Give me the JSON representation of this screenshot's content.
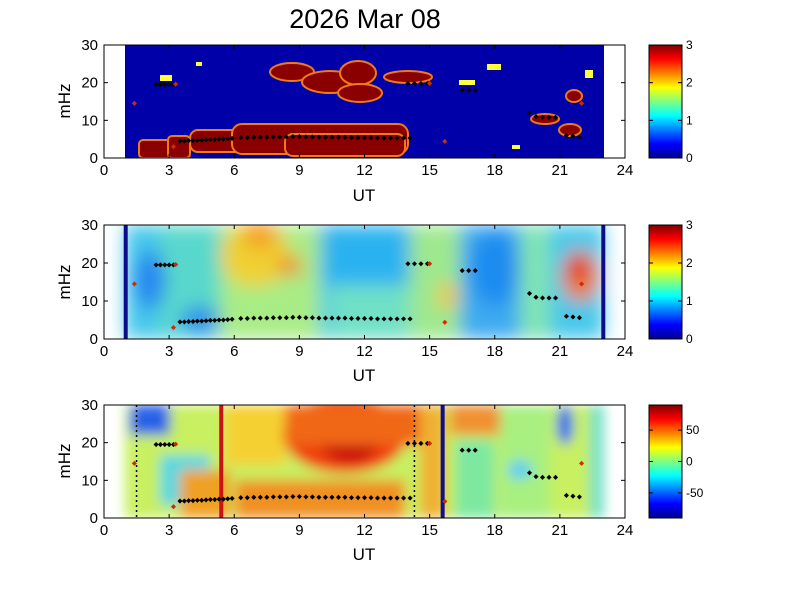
{
  "figure": {
    "title": "2026 Mar 08"
  },
  "chart_data": [
    {
      "type": "heatmap",
      "xlabel": "UT",
      "ylabel": "mHz",
      "xlim": [
        0,
        24
      ],
      "ylim": [
        0,
        30
      ],
      "xticks": [
        0,
        3,
        6,
        9,
        12,
        15,
        18,
        21,
        24
      ],
      "yticks": [
        0,
        10,
        20,
        30
      ],
      "data_extent_ut": [
        1,
        23
      ],
      "colorbar": {
        "range": [
          0,
          3
        ],
        "ticks": [
          0,
          1,
          2,
          3
        ]
      },
      "note_fields": [
        "near-zero background with high-value regions"
      ],
      "high_regions": [
        {
          "ut": [
            1.6,
            3.0
          ],
          "mhz": [
            0,
            4
          ],
          "value": 3
        },
        {
          "ut": [
            3.0,
            4.0
          ],
          "mhz": [
            0,
            5
          ],
          "value": 3
        },
        {
          "ut": [
            4.0,
            9.0
          ],
          "mhz": [
            1,
            7
          ],
          "value": 3
        },
        {
          "ut": [
            6.0,
            13.5
          ],
          "mhz": [
            2,
            8
          ],
          "value": 3
        },
        {
          "ut": [
            9.0,
            14.0
          ],
          "mhz": [
            2,
            7
          ],
          "value": 3
        },
        {
          "ut": [
            8.4,
            11.6
          ],
          "mhz": [
            15,
            21
          ],
          "value": 3
        },
        {
          "ut": [
            9.6,
            11.2
          ],
          "mhz": [
            16,
            24
          ],
          "value": 3
        },
        {
          "ut": [
            12.4,
            13.7
          ],
          "mhz": [
            18,
            23
          ],
          "value": 3
        },
        {
          "ut": [
            13.3,
            15.0
          ],
          "mhz": [
            20,
            23
          ],
          "value": 3
        },
        {
          "ut": [
            20.0,
            21.3
          ],
          "mhz": [
            9,
            12
          ],
          "value": 3
        },
        {
          "ut": [
            21.3,
            22.2
          ],
          "mhz": [
            6,
            8
          ],
          "value": 3
        },
        {
          "ut": [
            21.4,
            22.1
          ],
          "mhz": [
            15,
            18
          ],
          "value": 3
        },
        {
          "ut": [
            21.0,
            22.0
          ],
          "mhz": [
            3,
            6
          ],
          "value": 3
        }
      ],
      "series": [
        {
          "color": "#000000",
          "points": [
            [
              2.4,
              19.5
            ],
            [
              2.6,
              19.5
            ],
            [
              2.8,
              19.5
            ],
            [
              3.0,
              19.5
            ],
            [
              3.2,
              19.5
            ],
            [
              3.5,
              4.5
            ],
            [
              3.7,
              4.5
            ],
            [
              3.9,
              4.6
            ],
            [
              4.1,
              4.6
            ],
            [
              4.3,
              4.7
            ],
            [
              4.5,
              4.7
            ],
            [
              4.7,
              4.8
            ],
            [
              4.9,
              4.9
            ],
            [
              5.1,
              4.9
            ],
            [
              5.3,
              5.0
            ],
            [
              5.5,
              5.0
            ],
            [
              5.7,
              5.1
            ],
            [
              5.9,
              5.2
            ],
            [
              6.3,
              5.4
            ],
            [
              6.6,
              5.4
            ],
            [
              6.9,
              5.5
            ],
            [
              7.2,
              5.5
            ],
            [
              7.5,
              5.5
            ],
            [
              7.8,
              5.6
            ],
            [
              8.1,
              5.6
            ],
            [
              8.4,
              5.6
            ],
            [
              8.7,
              5.7
            ],
            [
              9.0,
              5.7
            ],
            [
              9.3,
              5.6
            ],
            [
              9.6,
              5.6
            ],
            [
              9.9,
              5.5
            ],
            [
              10.2,
              5.5
            ],
            [
              10.5,
              5.5
            ],
            [
              10.8,
              5.5
            ],
            [
              11.1,
              5.5
            ],
            [
              11.4,
              5.4
            ],
            [
              11.7,
              5.4
            ],
            [
              12.0,
              5.4
            ],
            [
              12.3,
              5.4
            ],
            [
              12.6,
              5.3
            ],
            [
              12.9,
              5.3
            ],
            [
              13.2,
              5.3
            ],
            [
              13.5,
              5.3
            ],
            [
              13.8,
              5.3
            ],
            [
              14.1,
              5.3
            ],
            [
              14.0,
              19.8
            ],
            [
              14.3,
              19.8
            ],
            [
              14.6,
              19.8
            ],
            [
              14.9,
              19.8
            ],
            [
              16.5,
              18.0
            ],
            [
              16.8,
              18.0
            ],
            [
              17.1,
              18.0
            ],
            [
              19.6,
              12.0
            ],
            [
              19.9,
              11.0
            ],
            [
              20.2,
              10.8
            ],
            [
              20.5,
              10.8
            ],
            [
              20.8,
              10.8
            ],
            [
              21.3,
              6.0
            ],
            [
              21.6,
              5.8
            ],
            [
              21.9,
              5.6
            ]
          ]
        },
        {
          "color": "#d42a00",
          "points": [
            [
              1.4,
              14.5
            ],
            [
              3.3,
              19.6
            ],
            [
              3.2,
              3.0
            ],
            [
              15.7,
              4.4
            ],
            [
              15.0,
              19.8
            ],
            [
              22.0,
              14.5
            ]
          ]
        }
      ]
    },
    {
      "type": "heatmap",
      "xlabel": "UT",
      "ylabel": "mHz",
      "xlim": [
        0,
        24
      ],
      "ylim": [
        0,
        30
      ],
      "xticks": [
        0,
        3,
        6,
        9,
        12,
        15,
        18,
        21,
        24
      ],
      "yticks": [
        0,
        10,
        20,
        30
      ],
      "data_extent_ut": [
        1,
        23
      ],
      "colorbar": {
        "range": [
          0,
          3
        ],
        "ticks": [
          0,
          1,
          2,
          3
        ]
      },
      "vertical_lines": [
        {
          "ut": 1.0,
          "color": "#0c0c8a"
        },
        {
          "ut": 23.0,
          "color": "#0c0c8a"
        }
      ],
      "series": [
        {
          "color": "#000000",
          "points": [
            [
              2.4,
              19.5
            ],
            [
              2.6,
              19.5
            ],
            [
              2.8,
              19.5
            ],
            [
              3.0,
              19.5
            ],
            [
              3.2,
              19.5
            ],
            [
              3.5,
              4.5
            ],
            [
              3.7,
              4.5
            ],
            [
              3.9,
              4.6
            ],
            [
              4.1,
              4.6
            ],
            [
              4.3,
              4.7
            ],
            [
              4.5,
              4.7
            ],
            [
              4.7,
              4.8
            ],
            [
              4.9,
              4.9
            ],
            [
              5.1,
              4.9
            ],
            [
              5.3,
              5.0
            ],
            [
              5.5,
              5.0
            ],
            [
              5.7,
              5.1
            ],
            [
              5.9,
              5.2
            ],
            [
              6.3,
              5.4
            ],
            [
              6.6,
              5.4
            ],
            [
              6.9,
              5.5
            ],
            [
              7.2,
              5.5
            ],
            [
              7.5,
              5.5
            ],
            [
              7.8,
              5.6
            ],
            [
              8.1,
              5.6
            ],
            [
              8.4,
              5.6
            ],
            [
              8.7,
              5.7
            ],
            [
              9.0,
              5.7
            ],
            [
              9.3,
              5.6
            ],
            [
              9.6,
              5.6
            ],
            [
              9.9,
              5.5
            ],
            [
              10.2,
              5.5
            ],
            [
              10.5,
              5.5
            ],
            [
              10.8,
              5.5
            ],
            [
              11.1,
              5.5
            ],
            [
              11.4,
              5.4
            ],
            [
              11.7,
              5.4
            ],
            [
              12.0,
              5.4
            ],
            [
              12.3,
              5.4
            ],
            [
              12.6,
              5.3
            ],
            [
              12.9,
              5.3
            ],
            [
              13.2,
              5.3
            ],
            [
              13.5,
              5.3
            ],
            [
              13.8,
              5.3
            ],
            [
              14.1,
              5.3
            ],
            [
              14.0,
              19.8
            ],
            [
              14.3,
              19.8
            ],
            [
              14.6,
              19.8
            ],
            [
              14.9,
              19.8
            ],
            [
              16.5,
              18.0
            ],
            [
              16.8,
              18.0
            ],
            [
              17.1,
              18.0
            ],
            [
              19.6,
              12.0
            ],
            [
              19.9,
              11.0
            ],
            [
              20.2,
              10.8
            ],
            [
              20.5,
              10.8
            ],
            [
              20.8,
              10.8
            ],
            [
              21.3,
              6.0
            ],
            [
              21.6,
              5.8
            ],
            [
              21.9,
              5.6
            ]
          ]
        },
        {
          "color": "#d42a00",
          "points": [
            [
              1.4,
              14.5
            ],
            [
              3.3,
              19.6
            ],
            [
              3.2,
              3.0
            ],
            [
              15.7,
              4.4
            ],
            [
              15.0,
              19.8
            ],
            [
              22.0,
              14.5
            ]
          ]
        }
      ]
    },
    {
      "type": "heatmap",
      "xlabel": "UT",
      "ylabel": "mHz",
      "xlim": [
        0,
        24
      ],
      "ylim": [
        0,
        30
      ],
      "xticks": [
        0,
        3,
        6,
        9,
        12,
        15,
        18,
        21,
        24
      ],
      "yticks": [
        0,
        10,
        20,
        30
      ],
      "data_extent_ut": [
        1,
        23
      ],
      "colorbar": {
        "range": [
          -90,
          90
        ],
        "ticks": [
          50,
          0,
          -50
        ]
      },
      "vertical_lines": [
        {
          "ut": 1.5,
          "color": "#000000",
          "style": "dotted"
        },
        {
          "ut": 5.4,
          "color": "#c81414",
          "style": "solid"
        },
        {
          "ut": 14.3,
          "color": "#000000",
          "style": "dotted"
        },
        {
          "ut": 15.6,
          "color": "#10108e",
          "style": "solid"
        }
      ],
      "series": [
        {
          "color": "#000000",
          "points": [
            [
              2.4,
              19.5
            ],
            [
              2.6,
              19.5
            ],
            [
              2.8,
              19.5
            ],
            [
              3.0,
              19.5
            ],
            [
              3.2,
              19.5
            ],
            [
              3.5,
              4.5
            ],
            [
              3.7,
              4.5
            ],
            [
              3.9,
              4.6
            ],
            [
              4.1,
              4.6
            ],
            [
              4.3,
              4.7
            ],
            [
              4.5,
              4.7
            ],
            [
              4.7,
              4.8
            ],
            [
              4.9,
              4.9
            ],
            [
              5.1,
              4.9
            ],
            [
              5.3,
              5.0
            ],
            [
              5.5,
              5.0
            ],
            [
              5.7,
              5.1
            ],
            [
              5.9,
              5.2
            ],
            [
              6.3,
              5.4
            ],
            [
              6.6,
              5.4
            ],
            [
              6.9,
              5.5
            ],
            [
              7.2,
              5.5
            ],
            [
              7.5,
              5.5
            ],
            [
              7.8,
              5.6
            ],
            [
              8.1,
              5.6
            ],
            [
              8.4,
              5.6
            ],
            [
              8.7,
              5.7
            ],
            [
              9.0,
              5.7
            ],
            [
              9.3,
              5.6
            ],
            [
              9.6,
              5.6
            ],
            [
              9.9,
              5.5
            ],
            [
              10.2,
              5.5
            ],
            [
              10.5,
              5.5
            ],
            [
              10.8,
              5.5
            ],
            [
              11.1,
              5.5
            ],
            [
              11.4,
              5.4
            ],
            [
              11.7,
              5.4
            ],
            [
              12.0,
              5.4
            ],
            [
              12.3,
              5.4
            ],
            [
              12.6,
              5.3
            ],
            [
              12.9,
              5.3
            ],
            [
              13.2,
              5.3
            ],
            [
              13.5,
              5.3
            ],
            [
              13.8,
              5.3
            ],
            [
              14.1,
              5.3
            ],
            [
              14.0,
              19.8
            ],
            [
              14.3,
              19.8
            ],
            [
              14.6,
              19.8
            ],
            [
              14.9,
              19.8
            ],
            [
              16.5,
              18.0
            ],
            [
              16.8,
              18.0
            ],
            [
              17.1,
              18.0
            ],
            [
              19.6,
              12.0
            ],
            [
              19.9,
              11.0
            ],
            [
              20.2,
              10.8
            ],
            [
              20.5,
              10.8
            ],
            [
              20.8,
              10.8
            ],
            [
              21.3,
              6.0
            ],
            [
              21.6,
              5.8
            ],
            [
              21.9,
              5.6
            ]
          ]
        },
        {
          "color": "#d42a00",
          "points": [
            [
              1.4,
              14.5
            ],
            [
              3.3,
              19.6
            ],
            [
              3.2,
              3.0
            ],
            [
              15.7,
              4.4
            ],
            [
              15.0,
              19.8
            ],
            [
              22.0,
              14.5
            ]
          ]
        }
      ]
    }
  ]
}
